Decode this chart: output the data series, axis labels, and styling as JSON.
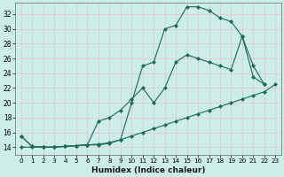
{
  "xlabel": "Humidex (Indice chaleur)",
  "background_color": "#cceee8",
  "grid_color": "#e8c8c8",
  "line_color": "#1a6b5a",
  "xlim": [
    -0.5,
    23.5
  ],
  "ylim": [
    13.0,
    33.5
  ],
  "yticks": [
    14,
    16,
    18,
    20,
    22,
    24,
    26,
    28,
    30,
    32
  ],
  "xticks": [
    0,
    1,
    2,
    3,
    4,
    5,
    6,
    7,
    8,
    9,
    10,
    11,
    12,
    13,
    14,
    15,
    16,
    17,
    18,
    19,
    20,
    21,
    22,
    23
  ],
  "series": [
    {
      "x": [
        0,
        1,
        2,
        3,
        4,
        5,
        6,
        7,
        8,
        9,
        10,
        11,
        12,
        13,
        14,
        15,
        16,
        17,
        18,
        19,
        20,
        21,
        22
      ],
      "y": [
        15.5,
        14.1,
        14.0,
        14.0,
        14.1,
        14.2,
        14.3,
        14.3,
        14.5,
        15.0,
        20.0,
        25.0,
        25.5,
        30.0,
        30.5,
        33.0,
        33.0,
        32.5,
        31.5,
        31.0,
        29.0,
        23.5,
        22.5
      ]
    },
    {
      "x": [
        0,
        1,
        2,
        3,
        4,
        5,
        6,
        7,
        8,
        9,
        10,
        11,
        12,
        13,
        14,
        15,
        16,
        17,
        18,
        19,
        20,
        21,
        22
      ],
      "y": [
        15.5,
        14.1,
        14.0,
        14.0,
        14.1,
        14.2,
        14.3,
        17.5,
        18.0,
        19.0,
        20.5,
        22.0,
        20.0,
        22.0,
        25.5,
        26.5,
        26.0,
        25.5,
        25.0,
        24.5,
        29.0,
        25.0,
        22.5
      ]
    },
    {
      "x": [
        0,
        1,
        2,
        3,
        4,
        5,
        6,
        7,
        8,
        9,
        10,
        11,
        12,
        13,
        14,
        15,
        16,
        17,
        18,
        19,
        20,
        21,
        22,
        23
      ],
      "y": [
        14.0,
        14.0,
        14.0,
        14.0,
        14.1,
        14.2,
        14.3,
        14.4,
        14.6,
        15.0,
        15.5,
        16.0,
        16.5,
        17.0,
        17.5,
        18.0,
        18.5,
        19.0,
        19.5,
        20.0,
        20.5,
        21.0,
        21.5,
        22.5
      ]
    }
  ]
}
